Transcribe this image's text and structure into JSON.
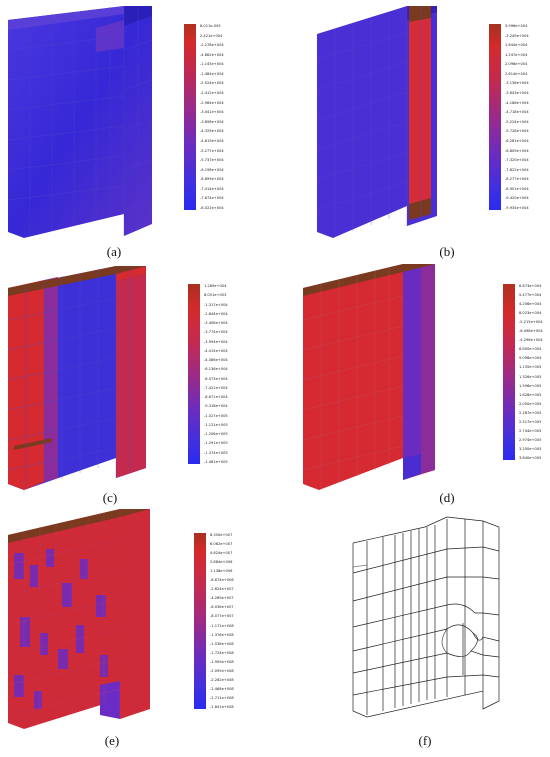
{
  "panels": [
    {
      "id": "a",
      "label": "(a)",
      "colors": {
        "base": "#3a2fd8",
        "strip": "#6a2cc4",
        "hot": "#b7283c"
      },
      "legend": [
        "6.011e-005",
        "2.421e+004",
        "-2.278e+004",
        "-4.862e+004",
        "-1.145e+004",
        "-1.484e+004",
        "-2.024e+004",
        "-2.412e+004",
        "-2.984e+004",
        "-3.441e+004",
        "-3.898e+004",
        "-4.329e+004",
        "-4.819e+004",
        "-5.277e+004",
        "-5.737e+004",
        "-6.198e+004",
        "-6.699e+004",
        "-7.414e+004",
        "-7.874e+004",
        "-8.022e+004"
      ]
    },
    {
      "id": "b",
      "label": "(b)",
      "colors": {
        "base": "#4a2ed0",
        "strip": "#d62c38",
        "hot": "#7a3a20"
      },
      "legend": [
        "3.996e+004",
        "-3.249e+004",
        "1.844e+004",
        "1.247e+004",
        "2.098e+004",
        "2.614e+004",
        "-3.136e+004",
        "-3.643e+004",
        "-4.186e+004",
        "-4.718e+004",
        "-5.224e+004",
        "-5.728e+004",
        "-6.281e+004",
        "-6.809e+004",
        "-7.320e+004",
        "-7.822e+004",
        "-8.277e+004",
        "-8.901e+004",
        "-9.420e+004",
        "-9.934e+004"
      ]
    },
    {
      "id": "c",
      "label": "(c)",
      "colors": {
        "base": "#3c2fd4",
        "strip": "#d42a30",
        "hot": "#7a3a20"
      },
      "legend": [
        "1.285e+004",
        "8.051e+003",
        "-1.317e+004",
        "-2.844e+004",
        "-3.408e+004",
        "-3.774e+004",
        "-3.994e+004",
        "-4.415e+004",
        "-4.386e+004",
        "-6.136e+004",
        "-6.573e+004",
        "-7.421e+004",
        "-8.671e+004",
        "-9.318e+004",
        "-1.027e+005",
        "-1.121e+005",
        "-1.206e+005",
        "-1.291e+005",
        "-1.374e+005",
        "-1.461e+005"
      ]
    },
    {
      "id": "d",
      "label": "(d)",
      "colors": {
        "base": "#d72a32",
        "strip": "#4a2dd0",
        "hot": "#7a3a20"
      },
      "legend": [
        "6.873e+004",
        "5.477e+004",
        "4.206e+004",
        "8.023e+004",
        "-5.215e+004",
        "-6.498e+004",
        "-4.296e+004",
        "8.600e+004",
        "9.096e+004",
        "1.135e+005",
        "1.326e+005",
        "1.596e+005",
        "1.828e+005",
        "2.050e+005",
        "2.287e+005",
        "2.517e+005",
        "2.744e+005",
        "2.974e+005",
        "3.200e+005",
        "3.640e+005"
      ]
    },
    {
      "id": "e",
      "label": "(e)",
      "colors": {
        "base": "#cf2a38",
        "strip": "#5a2cc8",
        "hot": "#7a3a20"
      },
      "legend": [
        "8.350e+007",
        "6.062e+007",
        "4.624e+007",
        "2.884e+006",
        "1.138e+006",
        "-8.674e+006",
        "-2.624e+007",
        "-4.289e+007",
        "-6.036e+007",
        "-8.077e+007",
        "-1.171e+008",
        "-1.376e+008",
        "-1.538e+008",
        "-1.724e+008",
        "-1.909e+008",
        "-2.095e+008",
        "-2.282e+008",
        "-2.468e+008",
        "-2.711e+008",
        "-2.841e+008"
      ]
    },
    {
      "id": "f",
      "label": "(f)"
    }
  ]
}
